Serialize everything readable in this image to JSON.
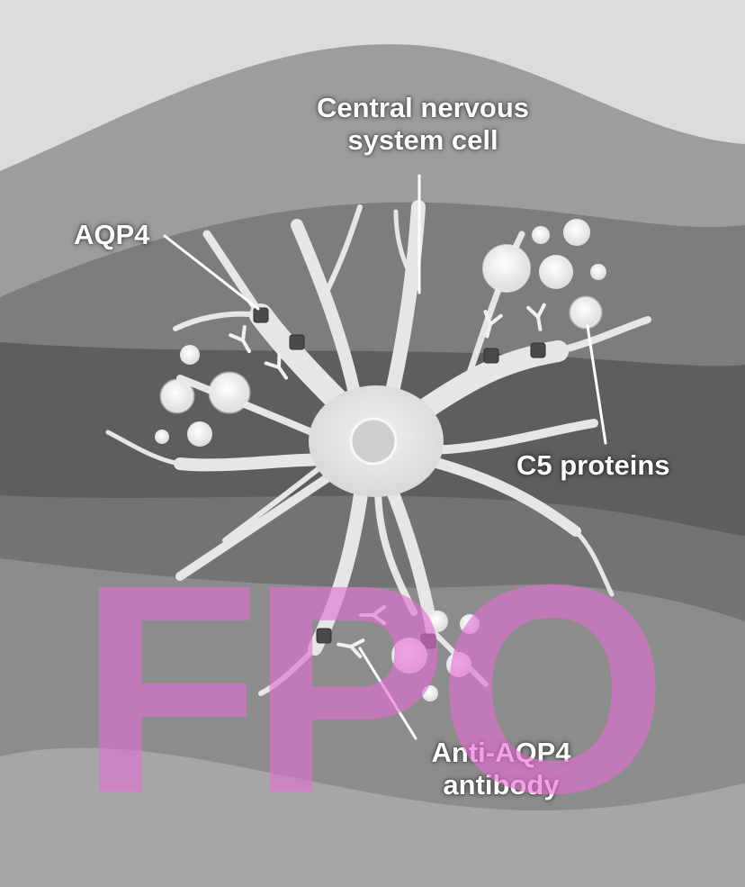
{
  "labels": {
    "cns_cell_line1": "Central nervous",
    "cns_cell_line2": "system cell",
    "aqp4": "AQP4",
    "c5_proteins": "C5 proteins",
    "antibody_line1": "Anti-AQP4",
    "antibody_line2": "antibody"
  },
  "watermark": "FPO",
  "colors": {
    "label_text": "#ffffff",
    "watermark": "#e46ed4",
    "cell": "#e9e9e9",
    "aqp4_channel": "#4a4a4a"
  }
}
